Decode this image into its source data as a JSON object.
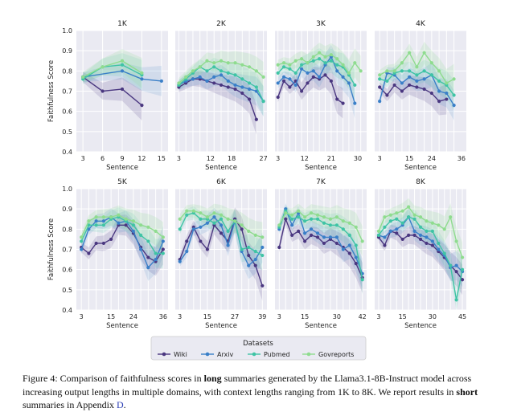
{
  "figure": {
    "ylabel": "Faithfulness Score",
    "xlabel": "Sentence",
    "ylim": [
      0.4,
      1.0
    ],
    "yticks": [
      "0.4",
      "0.5",
      "0.6",
      "0.7",
      "0.8",
      "0.9",
      "1.0"
    ],
    "legend": {
      "title": "Datasets",
      "placement": "bottom-center",
      "entries": [
        {
          "name": "Wiki",
          "color": "#4a3780"
        },
        {
          "name": "Arxiv",
          "color": "#3a7fc8"
        },
        {
          "name": "Pubmed",
          "color": "#3fc4a5"
        },
        {
          "name": "Govreports",
          "color": "#8fdc8f"
        }
      ]
    }
  },
  "chart_data": [
    {
      "type": "line",
      "title": "1K",
      "xlim": [
        2,
        16
      ],
      "xticks": [
        3,
        6,
        9,
        12,
        15
      ],
      "bands": true,
      "series": [
        {
          "name": "Wiki",
          "x": [
            3,
            6,
            9,
            12
          ],
          "values": [
            0.77,
            0.7,
            0.71,
            0.63
          ]
        },
        {
          "name": "Arxiv",
          "x": [
            3,
            9,
            12,
            15
          ],
          "values": [
            0.77,
            0.8,
            0.76,
            0.75
          ]
        },
        {
          "name": "Pubmed",
          "x": [
            3,
            6,
            9,
            12
          ],
          "values": [
            0.76,
            0.82,
            0.83,
            0.78
          ]
        },
        {
          "name": "Govreports",
          "x": [
            3,
            6,
            9,
            12
          ],
          "values": [
            0.77,
            0.82,
            0.85,
            0.79
          ]
        }
      ]
    },
    {
      "type": "line",
      "title": "2K",
      "xlim": [
        2,
        28
      ],
      "xticks": [
        3,
        12,
        18,
        27
      ],
      "bands": true,
      "series": [
        {
          "name": "Wiki",
          "x": [
            3,
            5,
            7,
            9,
            11,
            13,
            15,
            17,
            19,
            21,
            23,
            25
          ],
          "values": [
            0.72,
            0.74,
            0.76,
            0.76,
            0.75,
            0.74,
            0.73,
            0.72,
            0.71,
            0.69,
            0.66,
            0.56
          ]
        },
        {
          "name": "Arxiv",
          "x": [
            3,
            5,
            7,
            9,
            11,
            13,
            15,
            17,
            19,
            21,
            23,
            25,
            27
          ],
          "values": [
            0.73,
            0.75,
            0.76,
            0.77,
            0.75,
            0.77,
            0.78,
            0.75,
            0.73,
            0.72,
            0.71,
            0.7,
            0.65
          ]
        },
        {
          "name": "Pubmed",
          "x": [
            3,
            5,
            7,
            9,
            11,
            13,
            15,
            17,
            19,
            21,
            23,
            25,
            27
          ],
          "values": [
            0.73,
            0.76,
            0.79,
            0.82,
            0.8,
            0.82,
            0.8,
            0.79,
            0.78,
            0.76,
            0.74,
            0.72,
            0.65
          ]
        },
        {
          "name": "Govreports",
          "x": [
            3,
            5,
            7,
            9,
            11,
            13,
            15,
            17,
            19,
            21,
            23,
            25,
            27
          ],
          "values": [
            0.74,
            0.77,
            0.8,
            0.82,
            0.85,
            0.84,
            0.85,
            0.84,
            0.84,
            0.83,
            0.82,
            0.8,
            0.77
          ]
        }
      ]
    },
    {
      "type": "line",
      "title": "3K",
      "xlim": [
        2,
        33
      ],
      "xticks": [
        3,
        12,
        21,
        30
      ],
      "bands": true,
      "series": [
        {
          "name": "Wiki",
          "x": [
            3,
            5,
            7,
            9,
            11,
            13,
            15,
            17,
            19,
            21,
            23,
            25
          ],
          "values": [
            0.67,
            0.75,
            0.72,
            0.75,
            0.7,
            0.74,
            0.77,
            0.76,
            0.78,
            0.75,
            0.66,
            0.64
          ]
        },
        {
          "name": "Arxiv",
          "x": [
            3,
            5,
            7,
            9,
            11,
            13,
            15,
            17,
            19,
            21,
            23,
            25,
            27,
            29
          ],
          "values": [
            0.74,
            0.77,
            0.76,
            0.73,
            0.81,
            0.79,
            0.8,
            0.77,
            0.83,
            0.87,
            0.8,
            0.77,
            0.74,
            0.64
          ]
        },
        {
          "name": "Pubmed",
          "x": [
            3,
            5,
            7,
            9,
            11,
            13,
            15,
            17,
            19,
            21,
            23,
            25,
            27,
            29
          ],
          "values": [
            0.79,
            0.82,
            0.81,
            0.79,
            0.83,
            0.84,
            0.85,
            0.86,
            0.84,
            0.85,
            0.83,
            0.82,
            0.78,
            0.73
          ]
        },
        {
          "name": "Govreports",
          "x": [
            3,
            5,
            7,
            9,
            11,
            13,
            15,
            17,
            19,
            21,
            23,
            25,
            27,
            29,
            31
          ],
          "values": [
            0.83,
            0.84,
            0.83,
            0.85,
            0.86,
            0.84,
            0.87,
            0.89,
            0.87,
            0.88,
            0.86,
            0.83,
            0.79,
            0.84,
            0.8
          ]
        }
      ]
    },
    {
      "type": "line",
      "title": "4K",
      "xlim": [
        1,
        38
      ],
      "xticks": [
        3,
        15,
        24,
        36
      ],
      "bands": true,
      "series": [
        {
          "name": "Wiki",
          "x": [
            3,
            6,
            9,
            12,
            15,
            18,
            21,
            24,
            27,
            30
          ],
          "values": [
            0.72,
            0.68,
            0.73,
            0.7,
            0.73,
            0.72,
            0.71,
            0.69,
            0.65,
            0.66
          ]
        },
        {
          "name": "Arxiv",
          "x": [
            3,
            6,
            9,
            12,
            15,
            18,
            21,
            24,
            27,
            30,
            33
          ],
          "values": [
            0.65,
            0.79,
            0.78,
            0.74,
            0.77,
            0.75,
            0.76,
            0.78,
            0.7,
            0.69,
            0.63
          ]
        },
        {
          "name": "Pubmed",
          "x": [
            3,
            6,
            9,
            12,
            15,
            18,
            21,
            24,
            27,
            30,
            33
          ],
          "values": [
            0.76,
            0.75,
            0.79,
            0.8,
            0.8,
            0.78,
            0.8,
            0.78,
            0.75,
            0.73,
            0.68
          ]
        },
        {
          "name": "Govreports",
          "x": [
            3,
            6,
            9,
            12,
            15,
            18,
            21,
            24,
            27,
            30,
            33
          ],
          "values": [
            0.78,
            0.8,
            0.8,
            0.84,
            0.89,
            0.82,
            0.89,
            0.84,
            0.8,
            0.74,
            0.76
          ]
        }
      ]
    },
    {
      "type": "line",
      "title": "5K",
      "xlim": [
        1,
        38
      ],
      "xticks": [
        3,
        15,
        24,
        36
      ],
      "bands": true,
      "series": [
        {
          "name": "Wiki",
          "x": [
            3,
            6,
            9,
            12,
            15,
            18,
            21,
            24,
            27,
            30,
            33,
            36
          ],
          "values": [
            0.71,
            0.68,
            0.73,
            0.73,
            0.75,
            0.82,
            0.82,
            0.78,
            0.71,
            0.66,
            0.64,
            0.7
          ]
        },
        {
          "name": "Arxiv",
          "x": [
            3,
            6,
            9,
            12,
            15,
            18,
            21,
            24,
            27,
            30,
            33,
            36
          ],
          "values": [
            0.7,
            0.8,
            0.84,
            0.84,
            0.86,
            0.83,
            0.84,
            0.79,
            0.7,
            0.61,
            0.65,
            0.74
          ]
        },
        {
          "name": "Pubmed",
          "x": [
            3,
            6,
            9,
            12,
            15,
            18,
            21,
            24,
            27,
            30,
            33,
            36
          ],
          "values": [
            0.74,
            0.82,
            0.82,
            0.82,
            0.85,
            0.86,
            0.84,
            0.82,
            0.77,
            0.74,
            0.68,
            0.68
          ]
        },
        {
          "name": "Govreports",
          "x": [
            3,
            6,
            9,
            12,
            15,
            18,
            21,
            24,
            27,
            30,
            33,
            36
          ],
          "values": [
            0.76,
            0.84,
            0.86,
            0.86,
            0.86,
            0.87,
            0.85,
            0.84,
            0.82,
            0.81,
            0.79,
            0.76
          ]
        }
      ]
    },
    {
      "type": "line",
      "title": "6K",
      "xlim": [
        1,
        41
      ],
      "xticks": [
        3,
        15,
        27,
        39
      ],
      "bands": true,
      "series": [
        {
          "name": "Wiki",
          "x": [
            3,
            6,
            9,
            12,
            15,
            18,
            21,
            24,
            27,
            30,
            33,
            36,
            39
          ],
          "values": [
            0.65,
            0.74,
            0.81,
            0.74,
            0.7,
            0.82,
            0.78,
            0.74,
            0.85,
            0.8,
            0.67,
            0.62,
            0.52
          ]
        },
        {
          "name": "Arxiv",
          "x": [
            3,
            6,
            9,
            12,
            15,
            18,
            21,
            24,
            27,
            30,
            33,
            36,
            39
          ],
          "values": [
            0.64,
            0.69,
            0.8,
            0.81,
            0.83,
            0.86,
            0.82,
            0.72,
            0.84,
            0.69,
            0.62,
            0.65,
            0.71
          ]
        },
        {
          "name": "Pubmed",
          "x": [
            3,
            6,
            9,
            12,
            15,
            18,
            21,
            24,
            27,
            30,
            33,
            36,
            39
          ],
          "values": [
            0.8,
            0.87,
            0.88,
            0.85,
            0.85,
            0.83,
            0.85,
            0.79,
            0.84,
            0.7,
            0.71,
            0.69,
            0.67
          ]
        },
        {
          "name": "Govreports",
          "x": [
            3,
            6,
            9,
            12,
            15,
            18,
            21,
            24,
            27,
            30,
            33,
            36,
            39
          ],
          "values": [
            0.85,
            0.89,
            0.89,
            0.88,
            0.86,
            0.88,
            0.87,
            0.85,
            0.84,
            0.82,
            0.79,
            0.77,
            0.76
          ]
        }
      ]
    },
    {
      "type": "line",
      "title": "7K",
      "xlim": [
        1,
        44
      ],
      "xticks": [
        3,
        15,
        30,
        42
      ],
      "bands": true,
      "series": [
        {
          "name": "Wiki",
          "x": [
            3,
            6,
            9,
            12,
            15,
            18,
            21,
            24,
            27,
            30,
            33,
            36,
            39,
            42
          ],
          "values": [
            0.71,
            0.85,
            0.77,
            0.79,
            0.74,
            0.77,
            0.76,
            0.73,
            0.75,
            0.73,
            0.71,
            0.68,
            0.63,
            0.56
          ]
        },
        {
          "name": "Arxiv",
          "x": [
            3,
            6,
            9,
            12,
            15,
            18,
            21,
            24,
            27,
            30,
            33,
            36,
            39,
            42
          ],
          "values": [
            0.8,
            0.9,
            0.82,
            0.88,
            0.78,
            0.8,
            0.78,
            0.76,
            0.76,
            0.76,
            0.7,
            0.72,
            0.66,
            0.58
          ]
        },
        {
          "name": "Pubmed",
          "x": [
            3,
            6,
            9,
            12,
            15,
            18,
            21,
            24,
            27,
            30,
            33,
            36,
            39,
            42
          ],
          "values": [
            0.81,
            0.89,
            0.85,
            0.86,
            0.84,
            0.85,
            0.85,
            0.83,
            0.82,
            0.82,
            0.8,
            0.77,
            0.72,
            0.55
          ]
        },
        {
          "name": "Govreports",
          "x": [
            3,
            6,
            9,
            12,
            15,
            18,
            21,
            24,
            27,
            30,
            33,
            36,
            39,
            42
          ],
          "values": [
            0.82,
            0.88,
            0.87,
            0.89,
            0.86,
            0.88,
            0.87,
            0.86,
            0.85,
            0.86,
            0.84,
            0.83,
            0.81,
            0.74
          ]
        }
      ]
    },
    {
      "type": "line",
      "title": "8K",
      "xlim": [
        1,
        47
      ],
      "xticks": [
        3,
        15,
        30,
        45
      ],
      "bands": true,
      "series": [
        {
          "name": "Wiki",
          "x": [
            3,
            6,
            9,
            12,
            15,
            18,
            21,
            24,
            27,
            30,
            33,
            36,
            39,
            42,
            45
          ],
          "values": [
            0.76,
            0.72,
            0.79,
            0.78,
            0.75,
            0.77,
            0.77,
            0.75,
            0.73,
            0.72,
            0.69,
            0.66,
            0.62,
            0.59,
            0.55
          ]
        },
        {
          "name": "Arxiv",
          "x": [
            3,
            6,
            9,
            12,
            15,
            18,
            21,
            24,
            27,
            30,
            33,
            36,
            39,
            42,
            45
          ],
          "values": [
            0.77,
            0.76,
            0.79,
            0.8,
            0.82,
            0.86,
            0.79,
            0.77,
            0.76,
            0.74,
            0.7,
            0.67,
            0.61,
            0.62,
            0.59
          ]
        },
        {
          "name": "Pubmed",
          "x": [
            3,
            6,
            9,
            12,
            15,
            18,
            21,
            24,
            27,
            30,
            33,
            36,
            39,
            42,
            45
          ],
          "values": [
            0.77,
            0.81,
            0.84,
            0.85,
            0.83,
            0.86,
            0.85,
            0.81,
            0.79,
            0.79,
            0.73,
            0.68,
            0.62,
            0.45,
            0.6
          ]
        },
        {
          "name": "Govreports",
          "x": [
            3,
            6,
            9,
            12,
            15,
            18,
            21,
            24,
            27,
            30,
            33,
            36,
            39,
            42,
            45
          ],
          "values": [
            0.79,
            0.86,
            0.87,
            0.88,
            0.89,
            0.91,
            0.87,
            0.86,
            0.84,
            0.83,
            0.82,
            0.8,
            0.86,
            0.74,
            0.66
          ]
        }
      ]
    }
  ],
  "caption": {
    "label": "Figure 4:",
    "part1": " Comparison of faithfulness scores in ",
    "bold1": "long",
    "part2": " summaries generated by the Llama3.1-8B-Instruct model across increasing output lengths in multiple domains, with context lengths ranging from 1K to 8K. We report results in ",
    "bold2": "short",
    "part3": " summaries in Appendix ",
    "ref": "D",
    "part4": "."
  }
}
